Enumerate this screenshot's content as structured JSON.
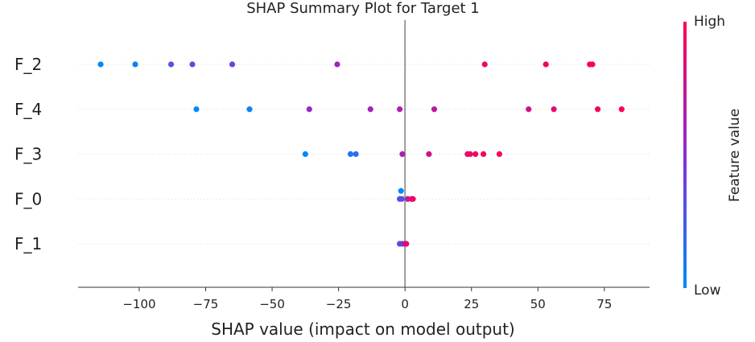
{
  "chart_data": {
    "type": "scatter",
    "title": "SHAP Summary Plot for Target 1",
    "xlabel": "SHAP value (impact on model output)",
    "xlim": [
      -123,
      92
    ],
    "xticks": [
      -100,
      -75,
      -50,
      -25,
      0,
      25,
      50,
      75
    ],
    "xtick_labels": [
      "−100",
      "−75",
      "−50",
      "−25",
      "0",
      "25",
      "50",
      "75"
    ],
    "grid": false,
    "features": [
      "F_2",
      "F_4",
      "F_3",
      "F_0",
      "F_1"
    ],
    "series": [
      {
        "feature": "F_2",
        "points": [
          {
            "x": -114.5,
            "v": 0.0
          },
          {
            "x": -101.5,
            "v": 0.05
          },
          {
            "x": -88,
            "v": 0.3
          },
          {
            "x": -80,
            "v": 0.35
          },
          {
            "x": -65,
            "v": 0.4
          },
          {
            "x": -25.5,
            "v": 0.6
          },
          {
            "x": 30,
            "v": 0.92
          },
          {
            "x": 53,
            "v": 0.95
          },
          {
            "x": 69.5,
            "v": 0.97
          },
          {
            "x": 70.5,
            "v": 1.0
          }
        ]
      },
      {
        "feature": "F_4",
        "points": [
          {
            "x": -78.5,
            "v": 0.0
          },
          {
            "x": -58.5,
            "v": 0.05
          },
          {
            "x": -36,
            "v": 0.55
          },
          {
            "x": -13,
            "v": 0.6
          },
          {
            "x": -2,
            "v": 0.65
          },
          {
            "x": 11,
            "v": 0.7
          },
          {
            "x": 46.5,
            "v": 0.8
          },
          {
            "x": 56,
            "v": 0.88
          },
          {
            "x": 72.5,
            "v": 0.95
          },
          {
            "x": 81.5,
            "v": 1.0
          }
        ]
      },
      {
        "feature": "F_3",
        "points": [
          {
            "x": -37.5,
            "v": 0.0
          },
          {
            "x": -20.5,
            "v": 0.1
          },
          {
            "x": -18.5,
            "v": 0.15
          },
          {
            "x": -1,
            "v": 0.65
          },
          {
            "x": 9,
            "v": 0.8
          },
          {
            "x": 23.5,
            "v": 0.9
          },
          {
            "x": 24.5,
            "v": 0.92
          },
          {
            "x": 26.5,
            "v": 0.95
          },
          {
            "x": 29.5,
            "v": 0.96
          },
          {
            "x": 35.5,
            "v": 1.0
          }
        ]
      },
      {
        "feature": "F_0",
        "points": [
          {
            "x": -1.5,
            "v": 0.0
          },
          {
            "x": -2,
            "v": 0.3
          },
          {
            "x": -1.2,
            "v": 0.35
          },
          {
            "x": 1,
            "v": 0.7
          },
          {
            "x": 2.5,
            "v": 0.9
          },
          {
            "x": 3,
            "v": 0.95
          }
        ]
      },
      {
        "feature": "F_1",
        "points": [
          {
            "x": -2,
            "v": 0.35
          },
          {
            "x": -1,
            "v": 0.4
          },
          {
            "x": 0,
            "v": 0.7
          },
          {
            "x": 0.5,
            "v": 0.9
          }
        ]
      }
    ],
    "colorbar": {
      "label": "Feature value",
      "high": "High",
      "low": "Low"
    }
  },
  "colors": {
    "low": "#008afb",
    "mid": "#8b2cd6",
    "high": "#ff0052",
    "zero_line": "#999999",
    "axis": "#333333",
    "row_line": "#dddddd"
  }
}
